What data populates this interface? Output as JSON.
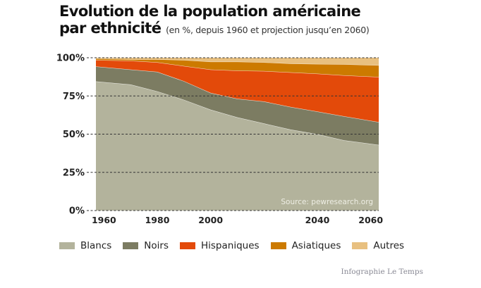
{
  "header": {
    "title_line1": "Evolution de la population américaine",
    "title_line2": "par ethnicité",
    "subtitle": "(en %, depuis 1960 et projection jusqu’en 2060)"
  },
  "chart_data": {
    "type": "area",
    "stacked": true,
    "title": "Evolution de la population américaine par ethnicité",
    "subtitle": "(en %, depuis 1960 et projection jusqu’en 2060)",
    "x": [
      1960,
      1970,
      1980,
      1990,
      2000,
      2010,
      2020,
      2030,
      2040,
      2050,
      2060
    ],
    "xlim": [
      1957,
      2063
    ],
    "ylim": [
      0,
      100
    ],
    "x_ticks": [
      "1960",
      "1980",
      "2000",
      "2040",
      "2060"
    ],
    "x_tick_values": [
      1960,
      1980,
      2000,
      2040,
      2060
    ],
    "y_ticks": [
      "0%",
      "25%",
      "50%",
      "75%",
      "100%"
    ],
    "y_tick_values": [
      0,
      25,
      50,
      75,
      100
    ],
    "grid": "horizontal dashed",
    "legend_position": "bottom",
    "annotation": "Source: pewresearch.org",
    "series": [
      {
        "name": "Blancs",
        "color": "#b3b39c",
        "values": [
          84.5,
          82.5,
          78,
          72.5,
          66,
          61,
          57,
          53,
          50,
          46,
          43
        ]
      },
      {
        "name": "Noirs",
        "color": "#7c7c62",
        "values": [
          9.8,
          9.8,
          12.8,
          12.2,
          11,
          12.2,
          14.4,
          14.8,
          14.8,
          15.7,
          14.9
        ]
      },
      {
        "name": "Hispaniques",
        "color": "#e34a0a",
        "values": [
          4.2,
          5.7,
          6.2,
          9.9,
          15.3,
          18.4,
          19.9,
          22.6,
          24.8,
          26.8,
          29.5
        ]
      },
      {
        "name": "Asiatiques",
        "color": "#cc7a00",
        "values": [
          1,
          1,
          2,
          3.9,
          5.1,
          5.8,
          5.7,
          5.8,
          6.3,
          7.2,
          7.7
        ]
      },
      {
        "name": "Autres",
        "color": "#e8c080",
        "values": [
          0.5,
          1,
          1,
          1.5,
          2.6,
          2.6,
          3,
          3.8,
          4.1,
          4.3,
          4.9
        ]
      }
    ]
  },
  "footer": {
    "credit": "Infographie Le Temps"
  }
}
